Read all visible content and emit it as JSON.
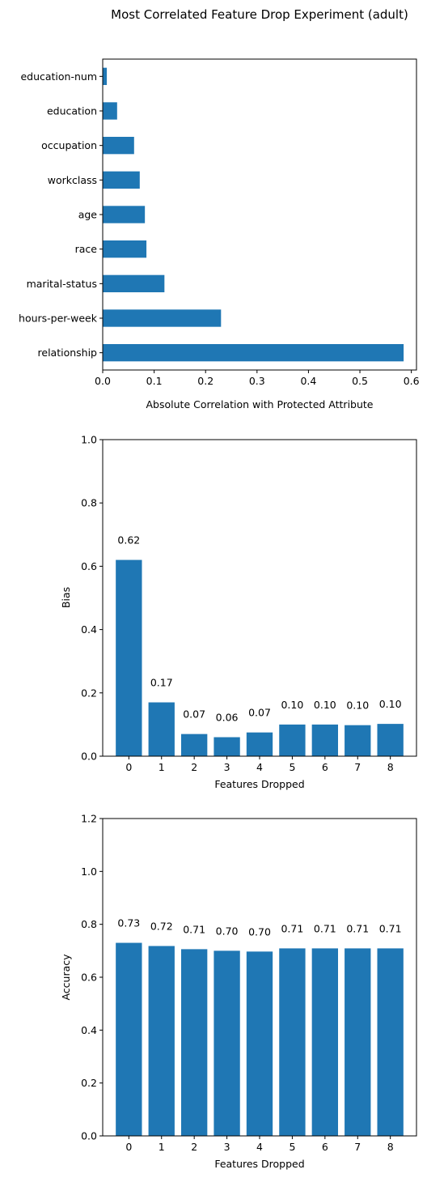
{
  "figure_title": "Most Correlated Feature Drop Experiment (adult)",
  "colors": {
    "bar": "#1f77b4",
    "axis": "#000000",
    "background": "#ffffff"
  },
  "chart_data": [
    {
      "type": "bar",
      "orientation": "horizontal",
      "categories": [
        "relationship",
        "hours-per-week",
        "marital-status",
        "race",
        "age",
        "workclass",
        "occupation",
        "education",
        "education-num"
      ],
      "values": [
        0.585,
        0.23,
        0.12,
        0.085,
        0.082,
        0.072,
        0.061,
        0.028,
        0.008
      ],
      "xlabel": "Absolute Correlation with Protected Attribute",
      "ylabel": "",
      "xlim": [
        0,
        0.61
      ],
      "xticks": [
        "0.0",
        "0.1",
        "0.2",
        "0.3",
        "0.4",
        "0.5",
        "0.6"
      ],
      "grid": false
    },
    {
      "type": "bar",
      "orientation": "vertical",
      "categories": [
        "0",
        "1",
        "2",
        "3",
        "4",
        "5",
        "6",
        "7",
        "8"
      ],
      "values": [
        0.62,
        0.17,
        0.07,
        0.06,
        0.075,
        0.1,
        0.1,
        0.098,
        0.102
      ],
      "data_labels": [
        "0.62",
        "0.17",
        "0.07",
        "0.06",
        "0.07",
        "0.10",
        "0.10",
        "0.10",
        "0.10"
      ],
      "xlabel": "Features Dropped",
      "ylabel": "Bias",
      "ylim": [
        0,
        1.0
      ],
      "yticks": [
        "0.0",
        "0.2",
        "0.4",
        "0.6",
        "0.8",
        "1.0"
      ],
      "grid": false
    },
    {
      "type": "bar",
      "orientation": "vertical",
      "categories": [
        "0",
        "1",
        "2",
        "3",
        "4",
        "5",
        "6",
        "7",
        "8"
      ],
      "values": [
        0.73,
        0.718,
        0.706,
        0.7,
        0.697,
        0.709,
        0.709,
        0.709,
        0.709
      ],
      "data_labels": [
        "0.73",
        "0.72",
        "0.71",
        "0.70",
        "0.70",
        "0.71",
        "0.71",
        "0.71",
        "0.71"
      ],
      "xlabel": "Features Dropped",
      "ylabel": "Accuracy",
      "ylim": [
        0,
        1.2
      ],
      "yticks": [
        "0.0",
        "0.2",
        "0.4",
        "0.6",
        "0.8",
        "1.0",
        "1.2"
      ],
      "grid": false
    }
  ]
}
